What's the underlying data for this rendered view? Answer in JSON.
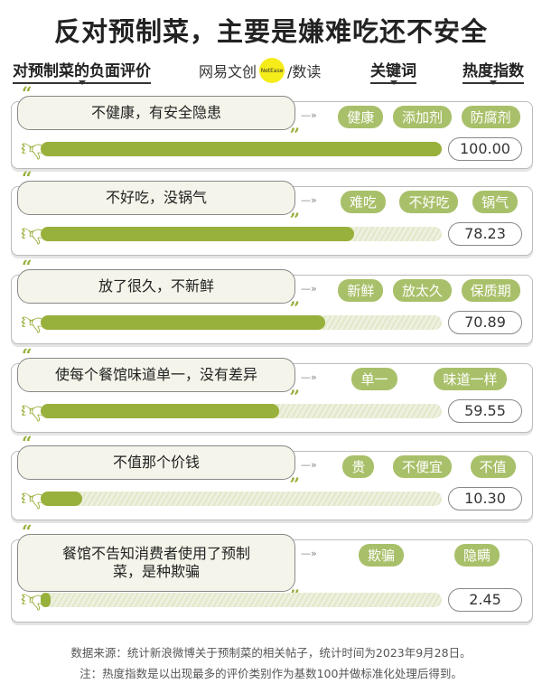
{
  "title": "反对预制菜，主要是嫌难吃还不安全",
  "headers": {
    "evaluation": "对预制菜的负面评价",
    "keywords": "关键词",
    "index": "热度指数"
  },
  "logo": {
    "left": "网易文创",
    "badge": "NetEase",
    "right": "/数读"
  },
  "colors": {
    "bar": "#98b03c",
    "tag": "#a9c06a",
    "track": "#e1e8c8"
  },
  "chart_data": {
    "type": "bar",
    "orientation": "horizontal",
    "xlim": [
      0,
      100
    ],
    "categories": [
      "不健康，有安全隐患",
      "不好吃，没锅气",
      "放了很久，不新鲜",
      "使每个餐馆味道单一，没有差异",
      "不值那个价钱",
      "餐馆不告知消费者使用了预制菜，是种欺骗"
    ],
    "values": [
      100.0,
      78.23,
      70.89,
      59.55,
      10.3,
      2.45
    ],
    "labels": [
      "100.00",
      "78.23",
      "70.89",
      "59.55",
      "10.30",
      "2.45"
    ],
    "keywords": [
      [
        "健康",
        "添加剂",
        "防腐剂"
      ],
      [
        "难吃",
        "不好吃",
        "锅气"
      ],
      [
        "新鲜",
        "放太久",
        "保质期"
      ],
      [
        "单一",
        "味道一样"
      ],
      [
        "贵",
        "不便宜",
        "不值"
      ],
      [
        "欺骗",
        "隐瞒"
      ]
    ]
  },
  "footer": {
    "source": "数据来源：统计新浪微博关于预制菜的相关帖子，统计时间为2023年9月28日。",
    "note": "注：热度指数是以出现最多的评价类别作为基数100并做标准化处理后得到。"
  }
}
